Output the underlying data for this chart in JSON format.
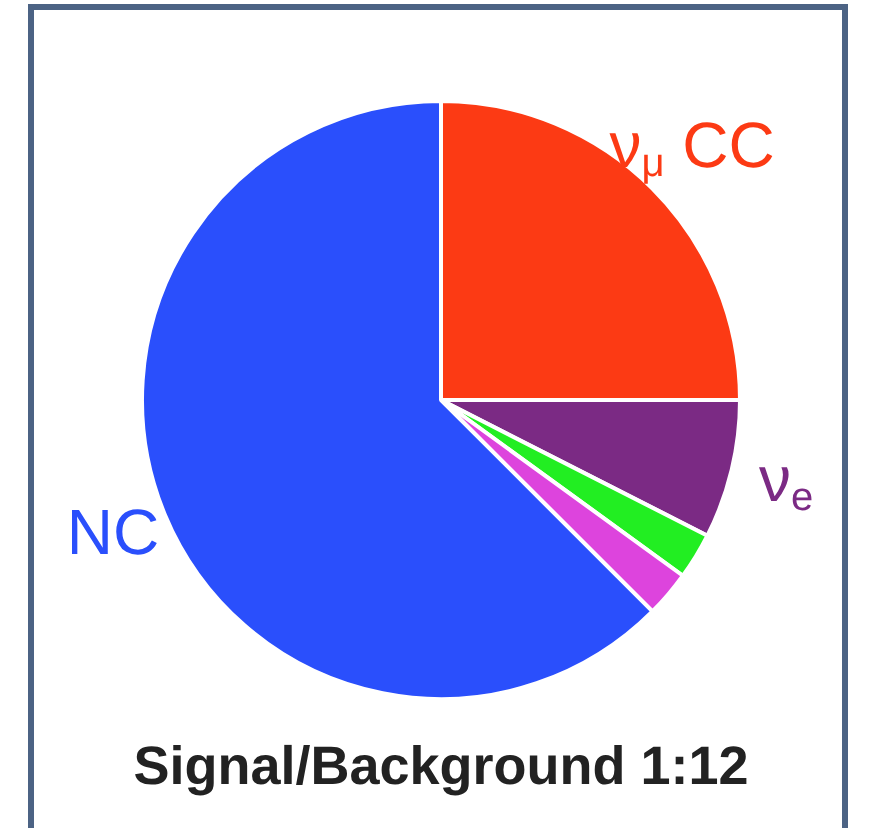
{
  "chart_data": {
    "type": "pie",
    "categories": [
      "ν$_{μ}$ CC",
      "ν$_{e}$",
      null,
      null,
      "NC"
    ],
    "values": [
      25,
      7.5,
      2.5,
      2.5,
      62.5
    ],
    "colors": [
      "#fc3a14",
      "#7b2a84",
      "#22ee22",
      "#dd44dd",
      "#2a4ffc"
    ],
    "legend": false,
    "annotations": [
      "Signal/Background 1:12"
    ]
  }
}
